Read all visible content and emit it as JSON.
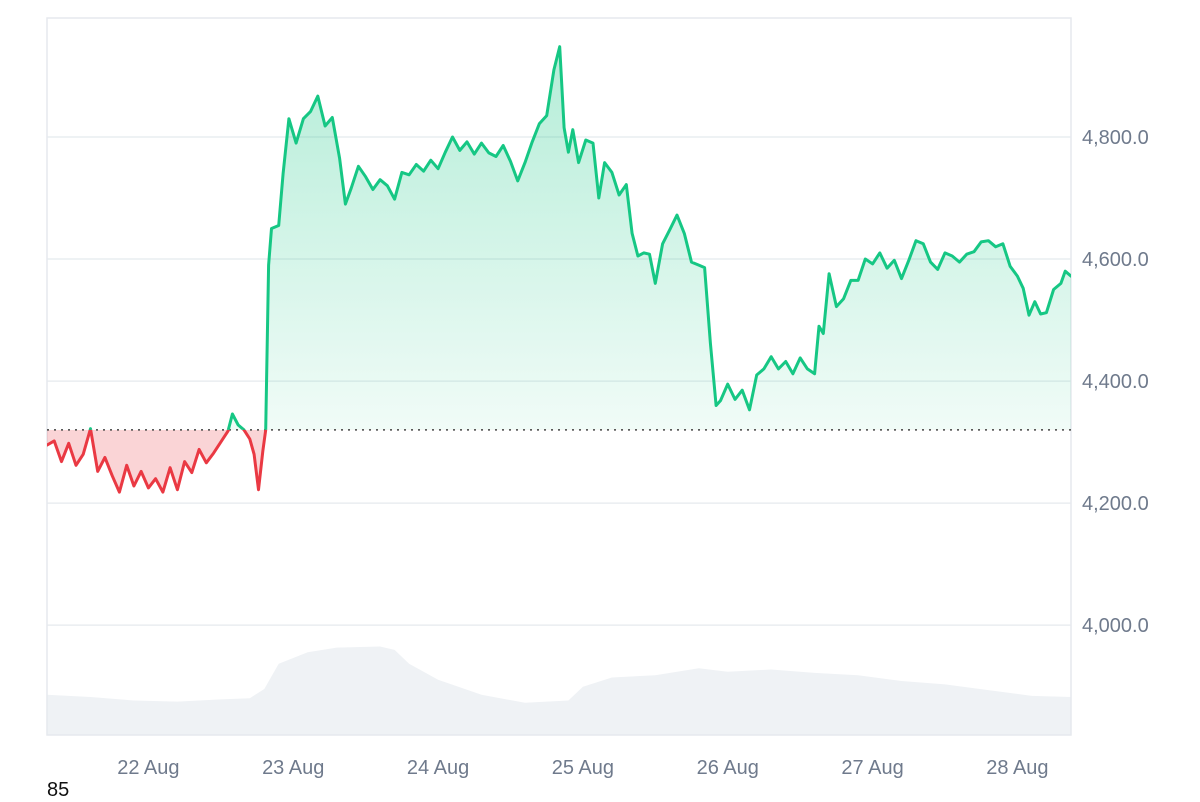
{
  "chart_data": {
    "type": "line",
    "title": "",
    "xlabel": "",
    "ylabel": "",
    "baseline": 4320,
    "ylim": [
      3820,
      4995
    ],
    "y_ticks": [
      4000,
      4200,
      4400,
      4600,
      4800
    ],
    "y_tick_labels": [
      "4,000.0",
      "4,200.0",
      "4,400.0",
      "4,600.0",
      "4,800.0"
    ],
    "x_range": [
      21.3,
      28.37
    ],
    "x_ticks": [
      22,
      23,
      24,
      25,
      26,
      27,
      28
    ],
    "x_tick_labels": [
      "22 Aug",
      "23 Aug",
      "24 Aug",
      "25 Aug",
      "26 Aug",
      "27 Aug",
      "28 Aug"
    ],
    "grid": true,
    "colors": {
      "above": "#16c784",
      "below": "#ea3943",
      "volume": "#eff2f5",
      "grid": "#e9edf1",
      "baseline": "#444444"
    },
    "series": [
      {
        "values": [
          [
            21.3,
            4295
          ],
          [
            21.35,
            4302
          ],
          [
            21.4,
            4268
          ],
          [
            21.45,
            4298
          ],
          [
            21.5,
            4262
          ],
          [
            21.55,
            4280
          ],
          [
            21.6,
            4322
          ],
          [
            21.65,
            4252
          ],
          [
            21.7,
            4275
          ],
          [
            21.75,
            4245
          ],
          [
            21.8,
            4218
          ],
          [
            21.85,
            4262
          ],
          [
            21.9,
            4228
          ],
          [
            21.95,
            4252
          ],
          [
            22.0,
            4225
          ],
          [
            22.05,
            4240
          ],
          [
            22.1,
            4218
          ],
          [
            22.15,
            4258
          ],
          [
            22.2,
            4222
          ],
          [
            22.25,
            4268
          ],
          [
            22.3,
            4250
          ],
          [
            22.35,
            4288
          ],
          [
            22.4,
            4266
          ],
          [
            22.45,
            4282
          ],
          [
            22.5,
            4300
          ],
          [
            22.55,
            4318
          ],
          [
            22.58,
            4346
          ],
          [
            22.62,
            4328
          ],
          [
            22.66,
            4320
          ],
          [
            22.7,
            4305
          ],
          [
            22.73,
            4280
          ],
          [
            22.76,
            4222
          ],
          [
            22.79,
            4285
          ],
          [
            22.81,
            4320
          ],
          [
            22.83,
            4590
          ],
          [
            22.85,
            4650
          ],
          [
            22.9,
            4655
          ],
          [
            22.93,
            4740
          ],
          [
            22.97,
            4830
          ],
          [
            23.02,
            4790
          ],
          [
            23.07,
            4830
          ],
          [
            23.12,
            4842
          ],
          [
            23.17,
            4867
          ],
          [
            23.22,
            4818
          ],
          [
            23.27,
            4832
          ],
          [
            23.32,
            4765
          ],
          [
            23.36,
            4690
          ],
          [
            23.4,
            4716
          ],
          [
            23.45,
            4752
          ],
          [
            23.5,
            4735
          ],
          [
            23.55,
            4714
          ],
          [
            23.6,
            4730
          ],
          [
            23.65,
            4720
          ],
          [
            23.7,
            4698
          ],
          [
            23.75,
            4742
          ],
          [
            23.8,
            4738
          ],
          [
            23.85,
            4755
          ],
          [
            23.9,
            4744
          ],
          [
            23.95,
            4762
          ],
          [
            24.0,
            4748
          ],
          [
            24.05,
            4775
          ],
          [
            24.1,
            4800
          ],
          [
            24.15,
            4778
          ],
          [
            24.2,
            4792
          ],
          [
            24.25,
            4772
          ],
          [
            24.3,
            4790
          ],
          [
            24.35,
            4774
          ],
          [
            24.4,
            4768
          ],
          [
            24.45,
            4786
          ],
          [
            24.5,
            4760
          ],
          [
            24.55,
            4728
          ],
          [
            24.6,
            4758
          ],
          [
            24.65,
            4792
          ],
          [
            24.7,
            4822
          ],
          [
            24.75,
            4835
          ],
          [
            24.8,
            4910
          ],
          [
            24.84,
            4948
          ],
          [
            24.87,
            4815
          ],
          [
            24.9,
            4775
          ],
          [
            24.93,
            4812
          ],
          [
            24.97,
            4758
          ],
          [
            25.02,
            4795
          ],
          [
            25.07,
            4790
          ],
          [
            25.11,
            4700
          ],
          [
            25.15,
            4758
          ],
          [
            25.2,
            4742
          ],
          [
            25.25,
            4705
          ],
          [
            25.3,
            4722
          ],
          [
            25.34,
            4642
          ],
          [
            25.38,
            4605
          ],
          [
            25.42,
            4610
          ],
          [
            25.46,
            4608
          ],
          [
            25.5,
            4560
          ],
          [
            25.55,
            4625
          ],
          [
            25.6,
            4648
          ],
          [
            25.65,
            4672
          ],
          [
            25.7,
            4642
          ],
          [
            25.75,
            4595
          ],
          [
            25.8,
            4590
          ],
          [
            25.84,
            4586
          ],
          [
            25.88,
            4462
          ],
          [
            25.92,
            4360
          ],
          [
            25.95,
            4368
          ],
          [
            26.0,
            4395
          ],
          [
            26.05,
            4370
          ],
          [
            26.1,
            4385
          ],
          [
            26.15,
            4353
          ],
          [
            26.2,
            4410
          ],
          [
            26.25,
            4420
          ],
          [
            26.3,
            4440
          ],
          [
            26.35,
            4420
          ],
          [
            26.4,
            4432
          ],
          [
            26.45,
            4412
          ],
          [
            26.5,
            4438
          ],
          [
            26.55,
            4420
          ],
          [
            26.6,
            4412
          ],
          [
            26.63,
            4490
          ],
          [
            26.66,
            4478
          ],
          [
            26.7,
            4576
          ],
          [
            26.75,
            4522
          ],
          [
            26.8,
            4535
          ],
          [
            26.85,
            4565
          ],
          [
            26.9,
            4565
          ],
          [
            26.95,
            4600
          ],
          [
            27.0,
            4592
          ],
          [
            27.05,
            4610
          ],
          [
            27.1,
            4585
          ],
          [
            27.15,
            4598
          ],
          [
            27.2,
            4568
          ],
          [
            27.25,
            4598
          ],
          [
            27.3,
            4630
          ],
          [
            27.35,
            4625
          ],
          [
            27.4,
            4595
          ],
          [
            27.45,
            4583
          ],
          [
            27.5,
            4610
          ],
          [
            27.55,
            4605
          ],
          [
            27.6,
            4595
          ],
          [
            27.65,
            4608
          ],
          [
            27.7,
            4612
          ],
          [
            27.75,
            4628
          ],
          [
            27.8,
            4630
          ],
          [
            27.85,
            4620
          ],
          [
            27.9,
            4625
          ],
          [
            27.95,
            4588
          ],
          [
            28.0,
            4572
          ],
          [
            28.04,
            4552
          ],
          [
            28.08,
            4508
          ],
          [
            28.12,
            4530
          ],
          [
            28.16,
            4510
          ],
          [
            28.2,
            4512
          ],
          [
            28.25,
            4550
          ],
          [
            28.3,
            4560
          ],
          [
            28.33,
            4580
          ],
          [
            28.37,
            4572
          ]
        ]
      }
    ],
    "volume": {
      "values": [
        [
          21.3,
          0.35
        ],
        [
          21.6,
          0.33
        ],
        [
          21.9,
          0.3
        ],
        [
          22.2,
          0.29
        ],
        [
          22.5,
          0.31
        ],
        [
          22.7,
          0.32
        ],
        [
          22.8,
          0.4
        ],
        [
          22.9,
          0.62
        ],
        [
          23.1,
          0.72
        ],
        [
          23.3,
          0.76
        ],
        [
          23.6,
          0.77
        ],
        [
          23.7,
          0.74
        ],
        [
          23.8,
          0.62
        ],
        [
          24.0,
          0.48
        ],
        [
          24.3,
          0.35
        ],
        [
          24.6,
          0.28
        ],
        [
          24.9,
          0.3
        ],
        [
          25.0,
          0.42
        ],
        [
          25.2,
          0.5
        ],
        [
          25.5,
          0.52
        ],
        [
          25.8,
          0.58
        ],
        [
          26.0,
          0.55
        ],
        [
          26.3,
          0.57
        ],
        [
          26.6,
          0.54
        ],
        [
          26.9,
          0.52
        ],
        [
          27.2,
          0.47
        ],
        [
          27.5,
          0.44
        ],
        [
          27.8,
          0.39
        ],
        [
          28.1,
          0.34
        ],
        [
          28.37,
          0.33
        ]
      ]
    }
  },
  "footer": {
    "corner_value": "85"
  }
}
